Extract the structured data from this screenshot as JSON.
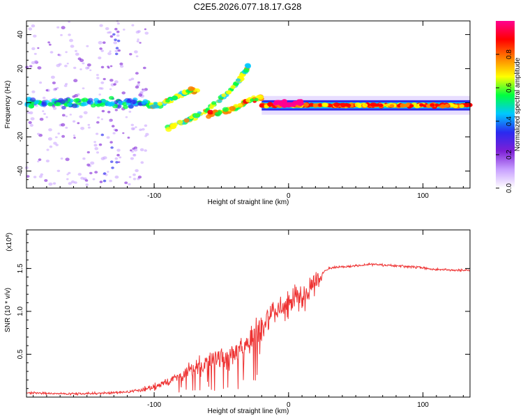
{
  "title": "C2E5.2026.077.18.17.G28",
  "chart_data": [
    {
      "type": "heatmap",
      "xlabel": "Height of straight line (km)",
      "ylabel": "Frequency (Hz)",
      "xlim": [
        -195,
        135
      ],
      "ylim": [
        -50,
        48
      ],
      "xticks": [
        -100,
        0,
        100
      ],
      "yticks": [
        -40,
        -20,
        0,
        20,
        40
      ],
      "colorbar": {
        "label": "Normalized spectral amplitude",
        "range": [
          0.0,
          1.0
        ],
        "ticks": [
          0.0,
          0.2,
          0.4,
          0.6,
          0.8
        ],
        "tick_labels": [
          "0.0",
          "0.2",
          "0.4",
          "0.6",
          "0.8"
        ],
        "colors": [
          "#ffffff",
          "#c8a0ff",
          "#7d1fd6",
          "#2a2af0",
          "#00c8ff",
          "#00ff40",
          "#ffff00",
          "#ff8000",
          "#ff0000",
          "#ff0090"
        ]
      },
      "features": [
        {
          "name": "near-zero band (noisy)",
          "x_range": [
            -195,
            -105
          ],
          "freq": 0,
          "amplitude": 0.3
        },
        {
          "name": "primary ascending trace",
          "x": [
            -105,
            -95,
            -87,
            -80,
            -72,
            -65
          ],
          "freq": [
            -2,
            -1,
            2,
            5,
            7,
            8
          ],
          "amplitude": 0.4
        },
        {
          "name": "secondary ascending trace",
          "x": [
            -90,
            -75,
            -60,
            -45,
            -35,
            -30
          ],
          "freq": [
            -15,
            -10,
            -4,
            6,
            15,
            22
          ],
          "amplitude": 0.4
        },
        {
          "name": "converging trace",
          "x": [
            -60,
            -50,
            -40,
            -30,
            -20
          ],
          "freq": [
            -7,
            -5,
            -3,
            1,
            3
          ],
          "amplitude": 0.5
        },
        {
          "name": "steady band",
          "x_range": [
            -20,
            135
          ],
          "freq": -1.5,
          "amplitude": 0.65
        },
        {
          "name": "peak segments",
          "x": [
            -10,
            0,
            10
          ],
          "freq": [
            0,
            -1,
            0
          ],
          "amplitude": 0.95
        }
      ]
    },
    {
      "type": "line",
      "xlabel": "Height of straight line (km)",
      "ylabel": "SNR (10 * v/v)",
      "y_multiplier": "(x10^4)",
      "multiplier_base": "(x10",
      "multiplier_exp": "4",
      "multiplier_close": ")",
      "xlim": [
        -195,
        135
      ],
      "ylim": [
        0.0,
        1.95
      ],
      "xticks": [
        -100,
        0,
        100
      ],
      "yticks": [
        0.5,
        1.0,
        1.5
      ],
      "ytick_labels": [
        "0.5",
        "1.0",
        "1.5"
      ],
      "color": "#ee3333",
      "series": [
        {
          "name": "SNR",
          "x": [
            -195,
            -170,
            -145,
            -120,
            -110,
            -100,
            -90,
            -80,
            -70,
            -60,
            -50,
            -40,
            -30,
            -25,
            -20,
            -15,
            -10,
            -8,
            -5,
            0,
            5,
            10,
            15,
            20,
            25,
            30,
            40,
            50,
            60,
            70,
            80,
            90,
            100,
            105,
            110,
            120,
            135
          ],
          "y": [
            0.05,
            0.04,
            0.04,
            0.06,
            0.08,
            0.12,
            0.18,
            0.26,
            0.34,
            0.42,
            0.45,
            0.52,
            0.62,
            0.72,
            0.82,
            0.9,
            1.0,
            1.02,
            1.05,
            1.1,
            1.15,
            1.12,
            1.25,
            1.38,
            1.45,
            1.5,
            1.52,
            1.53,
            1.55,
            1.54,
            1.53,
            1.52,
            1.51,
            1.49,
            1.49,
            1.48,
            1.48
          ]
        }
      ]
    }
  ]
}
